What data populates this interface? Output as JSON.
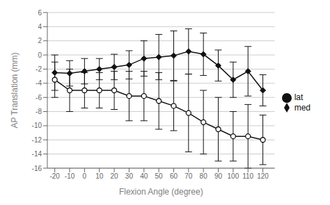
{
  "chart_data": {
    "type": "line",
    "x": [
      -20,
      -10,
      0,
      10,
      20,
      30,
      40,
      50,
      60,
      70,
      80,
      90,
      100,
      110,
      120
    ],
    "series": [
      {
        "name": "med",
        "color": "#111111",
        "marker": "diamond",
        "line_style": "solid",
        "values": [
          -2.5,
          -2.6,
          -2.3,
          -2.0,
          -1.7,
          -1.4,
          -0.5,
          -0.3,
          -0.1,
          0.5,
          0.1,
          -1.5,
          -3.5,
          -2.3,
          -5.0
        ],
        "errors": [
          2.5,
          1.8,
          1.8,
          1.5,
          1.8,
          2.0,
          2.5,
          3.2,
          3.5,
          3.2,
          3.0,
          2.2,
          2.5,
          3.5,
          2.2
        ]
      },
      {
        "name": "lat",
        "color": "#111111",
        "marker": "circle",
        "line_style": "solid",
        "values": [
          -3.5,
          -5.0,
          -5.0,
          -5.0,
          -5.0,
          -5.8,
          -5.8,
          -6.5,
          -7.2,
          -8.2,
          -9.5,
          -10.5,
          -11.5,
          -11.5,
          -12.0
        ],
        "errors": [
          2.5,
          3.0,
          2.5,
          2.5,
          2.7,
          3.5,
          3.5,
          4.0,
          3.5,
          5.5,
          4.5,
          4.5,
          3.5,
          4.5,
          3.5
        ]
      }
    ],
    "xlabel": "Flexion Angle (degree)",
    "ylabel": "AP Translation (mm)",
    "xlim": [
      -25,
      128
    ],
    "ylim": [
      -16,
      6
    ],
    "xticks": [
      -20,
      -10,
      0,
      10,
      20,
      30,
      40,
      50,
      60,
      70,
      80,
      90,
      100,
      110,
      120
    ],
    "yticks": [
      6,
      4,
      2,
      0,
      -2,
      -4,
      -6,
      -8,
      -10,
      -12,
      -14,
      -16
    ],
    "grid": true,
    "legend": "right"
  }
}
